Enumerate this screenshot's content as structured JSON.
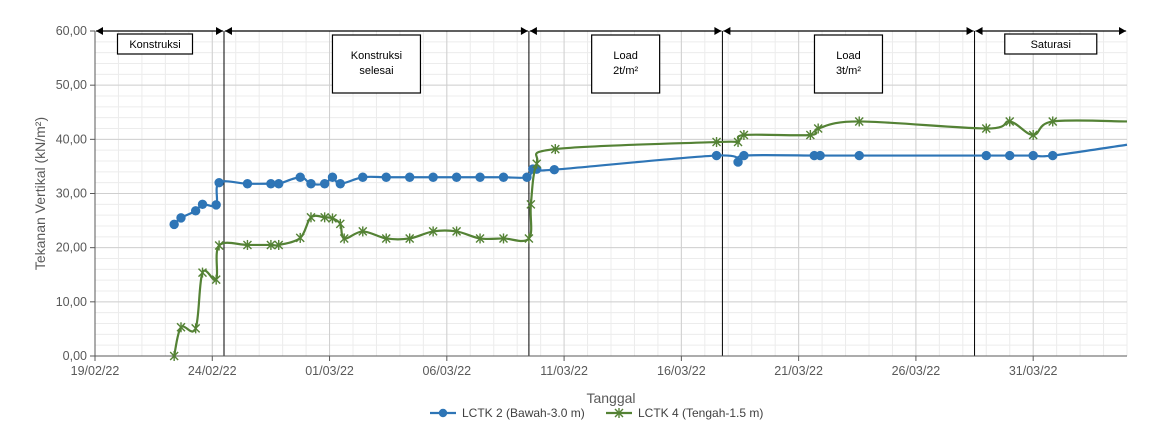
{
  "chart_data": {
    "type": "line",
    "xlabel": "Tanggal",
    "ylabel": "Tekanan Vertikal (kN/m²)",
    "ylim": [
      0,
      60
    ],
    "yticks": [
      "0,00",
      "10,00",
      "20,00",
      "30,00",
      "40,00",
      "50,00",
      "60,00"
    ],
    "xlim": [
      "2022-02-19",
      "2022-04-04"
    ],
    "xticks": [
      {
        "date": "2022-02-19",
        "label": "19/02/22"
      },
      {
        "date": "2022-02-24",
        "label": "24/02/22"
      },
      {
        "date": "2022-03-01",
        "label": "01/03/22"
      },
      {
        "date": "2022-03-06",
        "label": "06/03/22"
      },
      {
        "date": "2022-03-11",
        "label": "11/03/22"
      },
      {
        "date": "2022-03-16",
        "label": "16/03/22"
      },
      {
        "date": "2022-03-21",
        "label": "21/03/22"
      },
      {
        "date": "2022-03-26",
        "label": "26/03/22"
      },
      {
        "date": "2022-03-31",
        "label": "31/03/22"
      }
    ],
    "grid": true,
    "legend_position": "bottom",
    "phases": [
      {
        "lines": [
          "Konstruksi"
        ],
        "start": "2022-02-19",
        "end": "2022-02-24 12:00"
      },
      {
        "lines": [
          "Konstruksi",
          "selesai"
        ],
        "start": "2022-02-24 12:00",
        "end": "2022-03-09 12:00"
      },
      {
        "lines": [
          "Load",
          "2t/m²"
        ],
        "start": "2022-03-09 12:00",
        "end": "2022-03-17 18:00"
      },
      {
        "lines": [
          "Load",
          "3t/m²"
        ],
        "start": "2022-03-17 18:00",
        "end": "2022-03-28 12:00"
      },
      {
        "lines": [
          "Saturasi"
        ],
        "start": "2022-03-28 12:00",
        "end": "2022-04-04"
      }
    ],
    "series": [
      {
        "name": "LCTK 2 (Bawah-3.0 m)",
        "color": "#2e75b6",
        "marker": "circle",
        "points": [
          [
            "2022-02-22 09:00",
            24.3
          ],
          [
            "2022-02-22 16:00",
            25.5
          ],
          [
            "2022-02-23 07:00",
            26.8
          ],
          [
            "2022-02-23 14:00",
            28.0
          ],
          [
            "2022-02-24 04:00",
            27.9
          ],
          [
            "2022-02-24 07:00",
            32.0
          ],
          [
            "2022-02-25 12:00",
            31.8
          ],
          [
            "2022-02-26 12:00",
            31.8
          ],
          [
            "2022-02-26 20:00",
            31.8
          ],
          [
            "2022-02-27 18:00",
            33.0
          ],
          [
            "2022-02-28 05:00",
            31.8
          ],
          [
            "2022-02-28 19:00",
            31.8
          ],
          [
            "2022-02-29 03:00",
            33.0
          ],
          [
            "2022-03-01 11:00",
            31.8
          ],
          [
            "2022-03-02 10:00",
            33.0
          ],
          [
            "2022-03-03 10:00",
            33.0
          ],
          [
            "2022-03-04 10:00",
            33.0
          ],
          [
            "2022-03-05 10:00",
            33.0
          ],
          [
            "2022-03-06 10:00",
            33.0
          ],
          [
            "2022-03-07 10:00",
            33.0
          ],
          [
            "2022-03-08 10:00",
            33.0
          ],
          [
            "2022-03-09 10:00",
            33.0
          ],
          [
            "2022-03-09 16:00",
            34.5
          ],
          [
            "2022-03-09 20:00",
            34.5
          ],
          [
            "2022-03-10 14:00",
            34.4
          ],
          [
            "2022-03-17 12:00",
            37.0
          ],
          [
            "2022-03-18 10:00",
            35.8
          ],
          [
            "2022-03-18 16:00",
            37.0
          ],
          [
            "2022-03-21 16:00",
            37.0
          ],
          [
            "2022-03-21 22:00",
            37.0
          ],
          [
            "2022-03-23 14:00",
            37.0
          ],
          [
            "2022-03-29 00:00",
            37.0
          ],
          [
            "2022-03-30 00:00",
            37.0
          ],
          [
            "2022-03-31 00:00",
            37.0
          ],
          [
            "2022-03-31 20:00",
            37.0
          ],
          [
            "2022-04-04 00:00",
            39.0
          ]
        ]
      },
      {
        "name": "LCTK 4 (Tengah-1.5 m)",
        "color": "#548235",
        "marker": "star",
        "points": [
          [
            "2022-02-22 09:00",
            0.0
          ],
          [
            "2022-02-22 16:00",
            5.3
          ],
          [
            "2022-02-23 07:00",
            5.1
          ],
          [
            "2022-02-23 14:00",
            15.4
          ],
          [
            "2022-02-24 04:00",
            14.1
          ],
          [
            "2022-02-24 07:00",
            20.4
          ],
          [
            "2022-02-25 12:00",
            20.5
          ],
          [
            "2022-02-26 12:00",
            20.5
          ],
          [
            "2022-02-26 20:00",
            20.5
          ],
          [
            "2022-02-27 18:00",
            21.8
          ],
          [
            "2022-02-28 05:00",
            25.6
          ],
          [
            "2022-02-28 19:00",
            25.6
          ],
          [
            "2022-02-29 03:00",
            25.4
          ],
          [
            "2022-03-01 11:00",
            24.4
          ],
          [
            "2022-03-01 15:00",
            21.7
          ],
          [
            "2022-03-02 10:00",
            23.0
          ],
          [
            "2022-03-03 10:00",
            21.7
          ],
          [
            "2022-03-04 10:00",
            21.7
          ],
          [
            "2022-03-05 10:00",
            23.0
          ],
          [
            "2022-03-06 10:00",
            23.0
          ],
          [
            "2022-03-07 10:00",
            21.7
          ],
          [
            "2022-03-08 10:00",
            21.7
          ],
          [
            "2022-03-09 12:00",
            21.7
          ],
          [
            "2022-03-09 14:00",
            28.0
          ],
          [
            "2022-03-09 20:00",
            35.5
          ],
          [
            "2022-03-10 15:00",
            38.2
          ],
          [
            "2022-03-17 12:00",
            39.5
          ],
          [
            "2022-03-18 10:00",
            39.5
          ],
          [
            "2022-03-18 16:00",
            40.8
          ],
          [
            "2022-03-21 12:00",
            40.8
          ],
          [
            "2022-03-21 20:00",
            42.0
          ],
          [
            "2022-03-23 14:00",
            43.3
          ],
          [
            "2022-03-29 00:00",
            42.0
          ],
          [
            "2022-03-30 00:00",
            43.3
          ],
          [
            "2022-03-31 00:00",
            40.8
          ],
          [
            "2022-03-31 20:00",
            43.3
          ],
          [
            "2022-04-04 00:00",
            43.3
          ]
        ]
      }
    ]
  }
}
